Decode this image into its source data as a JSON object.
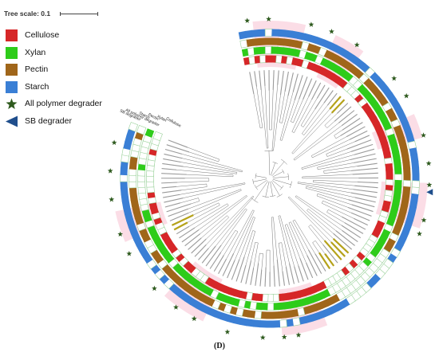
{
  "scale_label": "Tree scale: 0.1",
  "legend": [
    {
      "label": "Cellulose",
      "color": "#d62728",
      "shape": "square"
    },
    {
      "label": "Xylan",
      "color": "#2ecc1a",
      "shape": "square"
    },
    {
      "label": "Pectin",
      "color": "#a0661a",
      "shape": "square"
    },
    {
      "label": "Starch",
      "color": "#3a7fd5",
      "shape": "square"
    },
    {
      "label": "All polymer degrader",
      "color": "#2e5a1e",
      "shape": "star"
    },
    {
      "label": "SB degrader",
      "color": "#1f4e8c",
      "shape": "triangle"
    }
  ],
  "ring_headers": [
    "SB degrader",
    "All polymer degrader",
    "Starch",
    "Pectin",
    "Xylan",
    "Cellulose"
  ],
  "caption": "(D)"
}
